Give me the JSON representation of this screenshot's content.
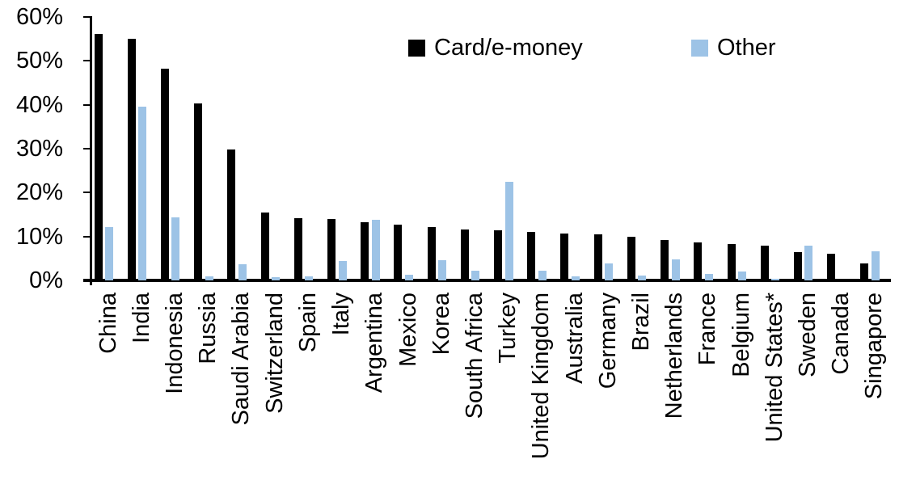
{
  "chart_data": {
    "type": "bar",
    "title": "",
    "xlabel": "",
    "ylabel": "",
    "ylim": [
      0,
      60
    ],
    "ytick_step": 10,
    "ytick_labels": [
      "0%",
      "10%",
      "20%",
      "30%",
      "40%",
      "50%",
      "60%"
    ],
    "grid": false,
    "legend_position": "top-center",
    "categories": [
      "China",
      "India",
      "Indonesia",
      "Russia",
      "Saudi Arabia",
      "Switzerland",
      "Spain",
      "Italy",
      "Argentina",
      "Mexico",
      "Korea",
      "South Africa",
      "Turkey",
      "United Kingdom",
      "Australia",
      "Germany",
      "Brazil",
      "Netherlands",
      "France",
      "Belgium",
      "United States*",
      "Sweden",
      "Canada",
      "Singapore"
    ],
    "series": [
      {
        "name": "Card/e-money",
        "color": "#000000",
        "values": [
          56.2,
          55.0,
          48.3,
          40.4,
          29.8,
          15.5,
          14.1,
          14.0,
          13.3,
          12.8,
          12.2,
          11.6,
          11.5,
          11.0,
          10.7,
          10.5,
          10.0,
          9.2,
          8.7,
          8.2,
          7.9,
          6.5,
          6.0,
          3.9
        ]
      },
      {
        "name": "Other",
        "color": "#9DC3E6",
        "values": [
          12.2,
          39.6,
          14.3,
          1.0,
          3.7,
          0.8,
          1.0,
          4.5,
          13.8,
          1.3,
          4.6,
          2.3,
          22.5,
          2.2,
          1.0,
          3.9,
          1.2,
          4.8,
          1.5,
          2.0,
          0.3,
          8.0,
          0.0,
          6.6
        ]
      }
    ],
    "colors": {
      "axis": "#000000",
      "background": "#ffffff"
    }
  }
}
